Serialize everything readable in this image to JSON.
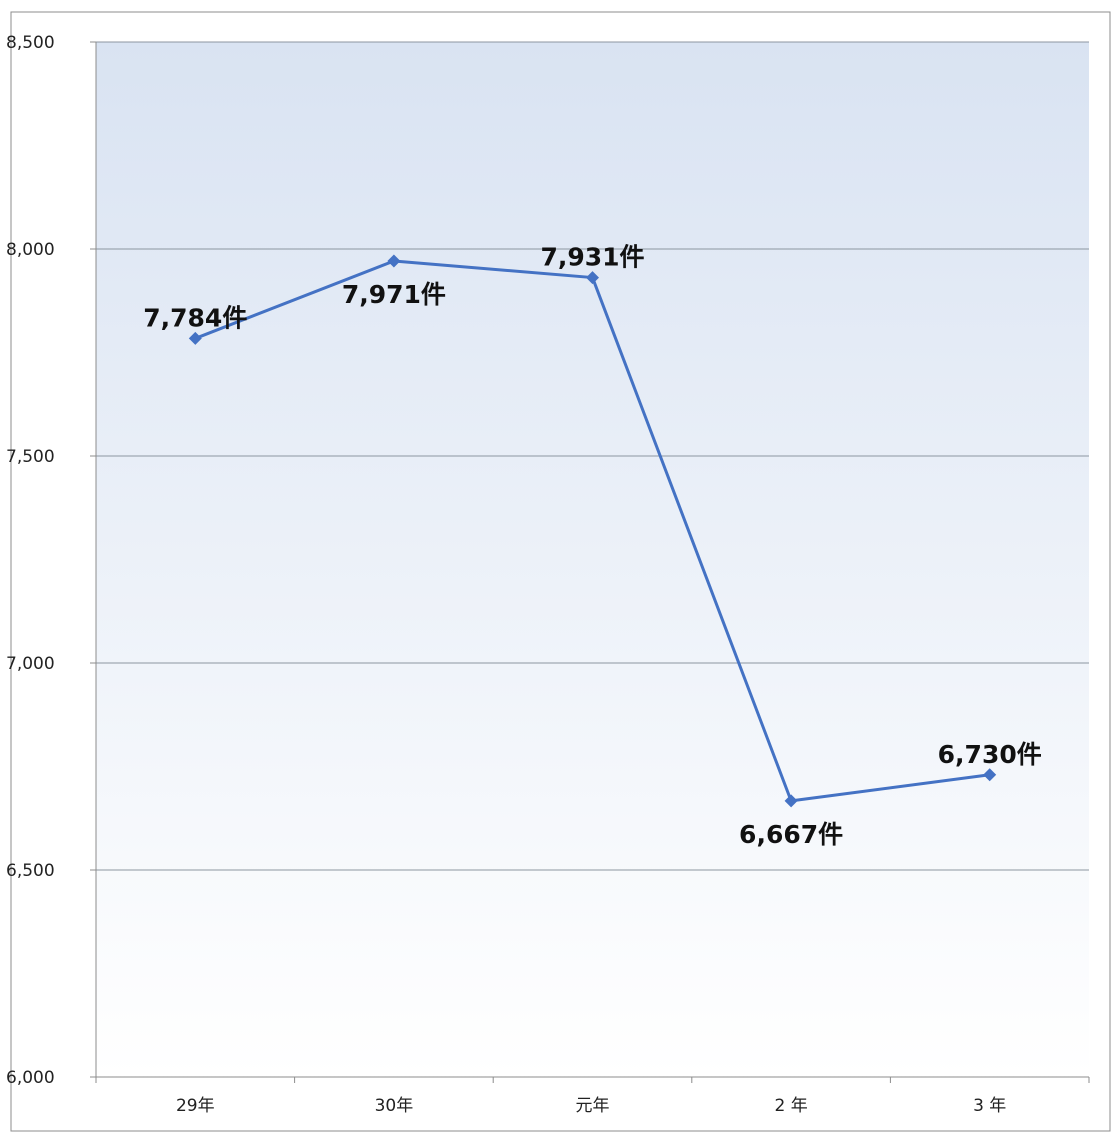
{
  "chart_data": {
    "type": "line",
    "title": "",
    "xlabel": "",
    "ylabel": "",
    "categories": [
      "29年",
      "30年",
      "元年",
      "2 年",
      "3 年"
    ],
    "series": [
      {
        "values": [
          7784,
          7971,
          7931,
          6667,
          6730
        ],
        "data_labels": [
          "7,784件",
          "7,971件",
          "7,931件",
          "6,667件",
          "6,730件"
        ]
      }
    ],
    "ylim": [
      6000,
      8500
    ],
    "yticks": [
      6000,
      6500,
      7000,
      7500,
      8000,
      8500
    ],
    "ytick_labels": [
      "6,000",
      "6,500",
      "7,000",
      "7,500",
      "8,000",
      "8,500"
    ],
    "grid": true,
    "legend": "none",
    "colors": {
      "line": "#4472C4",
      "marker": "#4472C4",
      "plot_bg_top": "#D9E3F2",
      "plot_bg_bottom": "#FFFFFF",
      "gridline": "#8C96A0",
      "axis": "#8C8C8C"
    }
  }
}
